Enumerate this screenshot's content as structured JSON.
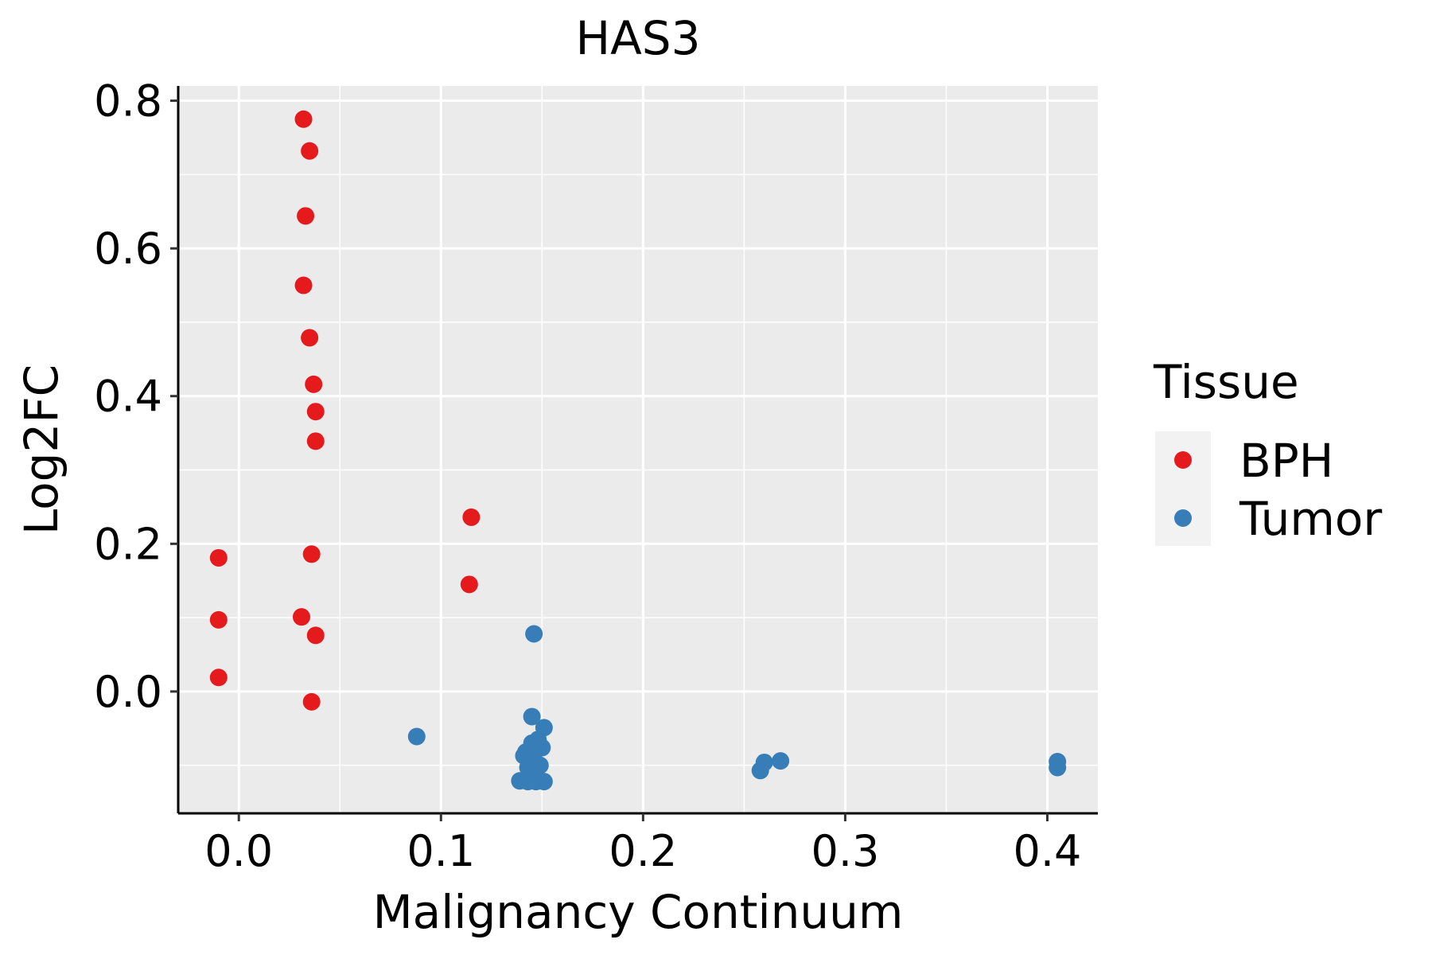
{
  "chart_data": {
    "type": "scatter",
    "title": "HAS3",
    "xlabel": "Malignancy Continuum",
    "ylabel": "Log2FC",
    "xlim": [
      -0.03,
      0.425
    ],
    "ylim": [
      -0.165,
      0.82
    ],
    "x_ticks": [
      0.0,
      0.1,
      0.2,
      0.3,
      0.4
    ],
    "x_tick_labels": [
      "0.0",
      "0.1",
      "0.2",
      "0.3",
      "0.4"
    ],
    "y_ticks": [
      0.0,
      0.2,
      0.4,
      0.6,
      0.8
    ],
    "y_tick_labels": [
      "0.0",
      "0.2",
      "0.4",
      "0.6",
      "0.8"
    ],
    "grid": true,
    "legend": {
      "title": "Tissue",
      "position": "right"
    },
    "series": [
      {
        "name": "BPH",
        "color": "#E41A1C",
        "points": [
          [
            0.032,
            0.775
          ],
          [
            0.035,
            0.732
          ],
          [
            0.033,
            0.644
          ],
          [
            0.032,
            0.55
          ],
          [
            0.035,
            0.479
          ],
          [
            0.037,
            0.416
          ],
          [
            0.038,
            0.379
          ],
          [
            0.038,
            0.339
          ],
          [
            0.115,
            0.236
          ],
          [
            0.036,
            0.186
          ],
          [
            -0.01,
            0.181
          ],
          [
            0.114,
            0.145
          ],
          [
            0.031,
            0.101
          ],
          [
            -0.01,
            0.097
          ],
          [
            0.038,
            0.076
          ],
          [
            -0.01,
            0.019
          ],
          [
            0.036,
            -0.014
          ]
        ]
      },
      {
        "name": "Tumor",
        "color": "#377EB8",
        "points": [
          [
            0.146,
            0.078
          ],
          [
            0.145,
            -0.034
          ],
          [
            0.151,
            -0.049
          ],
          [
            0.088,
            -0.061
          ],
          [
            0.148,
            -0.065
          ],
          [
            0.145,
            -0.07
          ],
          [
            0.15,
            -0.076
          ],
          [
            0.142,
            -0.082
          ],
          [
            0.141,
            -0.087
          ],
          [
            0.146,
            -0.092
          ],
          [
            0.149,
            -0.1
          ],
          [
            0.143,
            -0.103
          ],
          [
            0.145,
            -0.105
          ],
          [
            0.139,
            -0.121
          ],
          [
            0.143,
            -0.122
          ],
          [
            0.147,
            -0.122
          ],
          [
            0.151,
            -0.122
          ],
          [
            0.268,
            -0.094
          ],
          [
            0.26,
            -0.096
          ],
          [
            0.258,
            -0.107
          ],
          [
            0.405,
            -0.095
          ],
          [
            0.405,
            -0.103
          ]
        ]
      }
    ]
  }
}
